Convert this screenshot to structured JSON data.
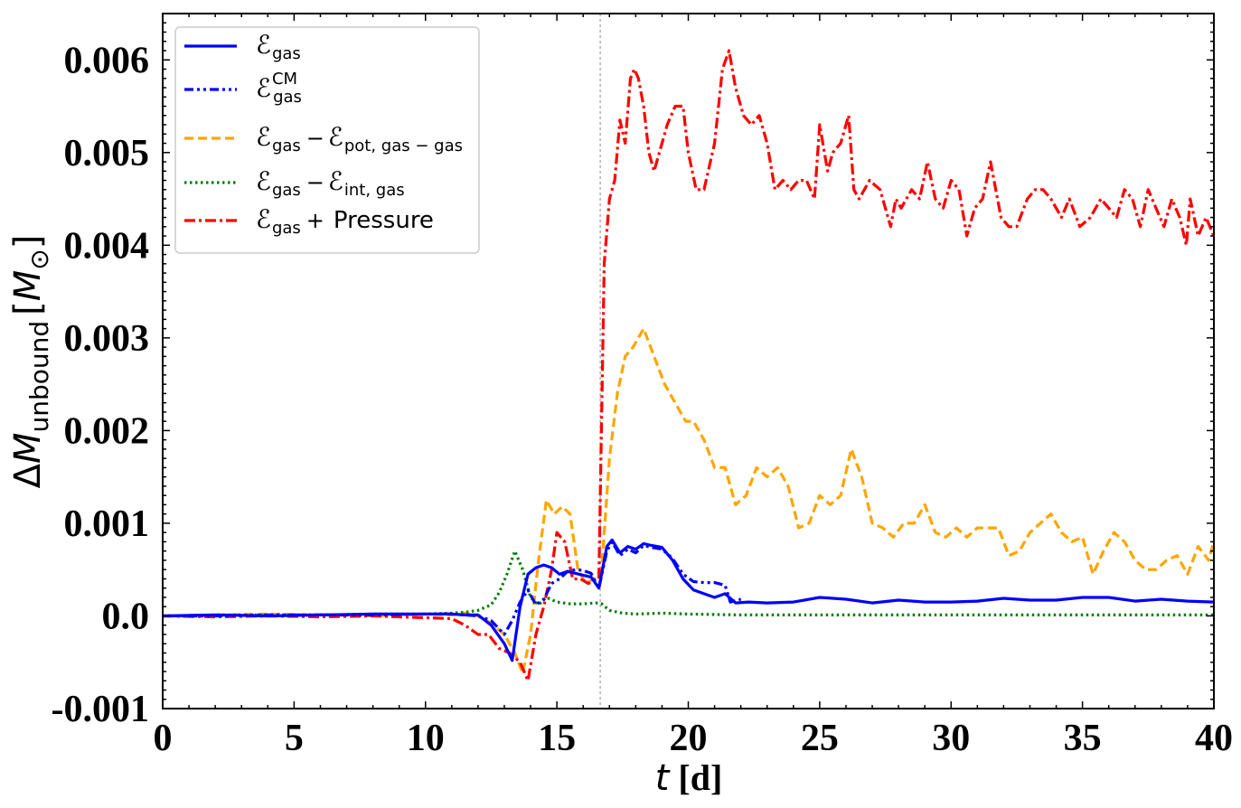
{
  "chart_data": {
    "type": "line",
    "xlabel": "t [d]",
    "ylabel": "ΔM_unbound [M⊙]",
    "xlim": [
      0,
      40
    ],
    "ylim": [
      -0.001,
      0.0065
    ],
    "xticks": [
      0,
      5,
      10,
      15,
      20,
      25,
      30,
      35,
      40
    ],
    "xtick_labels": [
      "0",
      "5",
      "10",
      "15",
      "20",
      "25",
      "30",
      "35",
      "40"
    ],
    "yticks": [
      -0.001,
      0,
      0.001,
      0.002,
      0.003,
      0.004,
      0.005,
      0.006
    ],
    "ytick_labels": [
      "-0.001",
      "0.0",
      "0.001",
      "0.002",
      "0.003",
      "0.004",
      "0.005",
      "0.006"
    ],
    "vline_x": 16.65,
    "legend_position": "top-left",
    "grid": false,
    "series": [
      {
        "name": "E_gas",
        "legend": {
          "base": "ℰ",
          "sub": "gas",
          "sup": "",
          "rest": []
        },
        "color": "#0000ff",
        "dash": "solid",
        "x": [
          0,
          2,
          4,
          6,
          8,
          10,
          11,
          11.5,
          12,
          12.5,
          13,
          13.3,
          13.6,
          13.9,
          14.2,
          14.5,
          14.8,
          15.1,
          15.4,
          15.7,
          16.0,
          16.3,
          16.6,
          16.9,
          17.1,
          17.4,
          17.7,
          18.0,
          18.3,
          18.6,
          19.0,
          19.4,
          19.8,
          20.2,
          20.6,
          21.0,
          21.4,
          21.8,
          22.3,
          23,
          24,
          25,
          26,
          27,
          28,
          29,
          30,
          31,
          32,
          33,
          34,
          35,
          36,
          37,
          38,
          39,
          40
        ],
        "y": [
          0,
          1e-05,
          0,
          1e-05,
          2e-05,
          2e-05,
          2e-05,
          1e-05,
          1e-05,
          -0.0001,
          -0.0003,
          -0.00048,
          0.0001,
          0.00045,
          0.00052,
          0.00055,
          0.00052,
          0.00045,
          0.00048,
          0.00046,
          0.00044,
          0.00042,
          0.0003,
          0.00075,
          0.00082,
          0.00068,
          0.00075,
          0.00072,
          0.00078,
          0.00076,
          0.00074,
          0.0006,
          0.0004,
          0.00028,
          0.00024,
          0.0002,
          0.00024,
          0.00014,
          0.00015,
          0.00014,
          0.00015,
          0.0002,
          0.00018,
          0.00014,
          0.00017,
          0.00015,
          0.00015,
          0.00016,
          0.00019,
          0.00017,
          0.00017,
          0.0002,
          0.0002,
          0.00016,
          0.00018,
          0.00016,
          0.00015
        ]
      },
      {
        "name": "E_gas^CM",
        "legend": {
          "base": "ℰ",
          "sub": "gas",
          "sup": "CM",
          "rest": []
        },
        "color": "#0000ff",
        "dash": "dashdotdot",
        "x": [
          0,
          2,
          4,
          6,
          8,
          10,
          11,
          12,
          12.5,
          13,
          13.3,
          13.6,
          13.9,
          14.2,
          14.5,
          14.8,
          15.1,
          15.4,
          15.7,
          16.0,
          16.3,
          16.6,
          16.9,
          17.1,
          17.4,
          17.7,
          18.0,
          18.3,
          18.6,
          19.0,
          19.4,
          19.8,
          20.2,
          20.6,
          21.0,
          21.4,
          21.6,
          22.0
        ],
        "y": [
          0,
          0,
          1e-05,
          1e-05,
          1e-05,
          2e-05,
          2e-05,
          0,
          -5e-05,
          -0.0002,
          -5e-05,
          0.00015,
          0.00028,
          0.00012,
          0.00018,
          0.00035,
          0.0004,
          0.00048,
          0.0005,
          0.00049,
          0.00046,
          0.0003,
          0.0007,
          0.0008,
          0.00065,
          0.00072,
          0.00068,
          0.00076,
          0.00074,
          0.00072,
          0.00062,
          0.00045,
          0.00037,
          0.00036,
          0.00036,
          0.00033,
          0.00015,
          0.00018
        ]
      },
      {
        "name": "E_gas − E_pot,gas−gas",
        "legend": {
          "base": "ℰ",
          "sub": "gas",
          "sup": "",
          "rest": [
            {
              "op": "−",
              "base": "ℰ",
              "sub": "pot, gas − gas"
            }
          ]
        },
        "color": "#ffa500",
        "dash": "dashed",
        "x": [
          0,
          2,
          4,
          6,
          8,
          10,
          11,
          11.5,
          12,
          12.5,
          13,
          13.4,
          13.7,
          14.0,
          14.3,
          14.6,
          14.9,
          15.2,
          15.5,
          15.8,
          16.1,
          16.4,
          16.7,
          17.0,
          17.3,
          17.6,
          17.9,
          18.3,
          18.7,
          19.1,
          19.5,
          19.9,
          20.2,
          20.6,
          21.0,
          21.4,
          21.8,
          22.2,
          22.6,
          23.0,
          23.4,
          23.8,
          24.2,
          24.6,
          25.0,
          25.4,
          25.8,
          26.2,
          26.6,
          27.0,
          27.4,
          27.8,
          28.2,
          28.6,
          29.0,
          29.4,
          29.8,
          30.2,
          30.6,
          31.0,
          31.4,
          31.8,
          32.2,
          32.6,
          33.0,
          33.4,
          33.8,
          34.2,
          34.6,
          35.0,
          35.4,
          35.8,
          36.2,
          36.6,
          37.0,
          37.4,
          37.8,
          38.2,
          38.6,
          39.0,
          39.4,
          39.8,
          40.0
        ],
        "y": [
          0,
          1e-05,
          2e-05,
          1e-05,
          0,
          2e-05,
          1e-05,
          3e-05,
          0,
          -8e-05,
          -0.0002,
          -0.0004,
          -0.00062,
          -0.0002,
          0.0006,
          0.00125,
          0.0011,
          0.00118,
          0.0011,
          0.0005,
          0.00035,
          0.0004,
          0.0005,
          0.0017,
          0.0024,
          0.0028,
          0.0029,
          0.0031,
          0.0028,
          0.0025,
          0.0023,
          0.0021,
          0.0021,
          0.0019,
          0.0016,
          0.0016,
          0.0012,
          0.0013,
          0.0016,
          0.0015,
          0.0016,
          0.0014,
          0.00095,
          0.001,
          0.0013,
          0.0012,
          0.0013,
          0.0018,
          0.0015,
          0.001,
          0.00095,
          0.00085,
          0.001,
          0.001,
          0.0012,
          0.0009,
          0.00085,
          0.00095,
          0.00085,
          0.00095,
          0.00095,
          0.00095,
          0.00065,
          0.0007,
          0.0009,
          0.001,
          0.0011,
          0.0009,
          0.0008,
          0.00085,
          0.00045,
          0.0007,
          0.0009,
          0.0008,
          0.0006,
          0.0005,
          0.0005,
          0.0006,
          0.00065,
          0.00045,
          0.00075,
          0.0006,
          0.0008
        ]
      },
      {
        "name": "E_gas − E_int,gas",
        "legend": {
          "base": "ℰ",
          "sub": "gas",
          "sup": "",
          "rest": [
            {
              "op": "−",
              "base": "ℰ",
              "sub": "int, gas"
            }
          ]
        },
        "color": "#008000",
        "dash": "dotted",
        "x": [
          0,
          2,
          4,
          6,
          8,
          10,
          11,
          11.5,
          12,
          12.5,
          12.8,
          13.1,
          13.4,
          13.7,
          14.0,
          14.3,
          14.6,
          15.0,
          15.5,
          16.0,
          16.5,
          16.7,
          17.0,
          17.5,
          18,
          19,
          20,
          22,
          24,
          26,
          28,
          30,
          32,
          34,
          36,
          38,
          40
        ],
        "y": [
          0,
          1e-05,
          1e-05,
          1e-05,
          2e-05,
          2e-05,
          3e-05,
          4e-05,
          6e-05,
          0.00012,
          0.00025,
          0.00045,
          0.0007,
          0.0005,
          0.0002,
          0.00012,
          0.0002,
          0.00015,
          0.00013,
          0.00013,
          0.00014,
          0.00013,
          6e-05,
          3e-05,
          2e-05,
          3e-05,
          2e-05,
          1e-05,
          1e-05,
          1e-05,
          1e-05,
          1e-05,
          1e-05,
          1e-05,
          1e-05,
          1e-05,
          1e-05
        ]
      },
      {
        "name": "E_gas + Pressure",
        "legend": {
          "base": "ℰ",
          "sub": "gas",
          "sup": "",
          "rest": [
            {
              "op": "+",
              "text": "Pressure"
            }
          ]
        },
        "color": "#ff0000",
        "dash": "dashdot",
        "x": [
          0,
          2,
          4,
          6,
          8,
          10,
          11,
          11.5,
          12,
          12.4,
          12.8,
          13.2,
          13.6,
          13.9,
          14.2,
          14.5,
          14.8,
          15.0,
          15.3,
          15.6,
          15.9,
          16.2,
          16.5,
          16.6,
          16.8,
          17.0,
          17.2,
          17.4,
          17.6,
          17.8,
          17.95,
          18.1,
          18.3,
          18.5,
          18.7,
          18.9,
          19.2,
          19.5,
          19.8,
          20.0,
          20.3,
          20.6,
          21.0,
          21.3,
          21.55,
          21.8,
          22.1,
          22.4,
          22.7,
          23.0,
          23.3,
          23.6,
          23.9,
          24.2,
          24.5,
          24.8,
          25.0,
          25.3,
          25.5,
          25.8,
          26.1,
          26.3,
          26.5,
          26.9,
          27.3,
          27.7,
          27.9,
          28.1,
          28.5,
          28.8,
          29.1,
          29.4,
          29.7,
          30.0,
          30.3,
          30.6,
          30.9,
          31.2,
          31.5,
          31.9,
          32.2,
          32.5,
          32.9,
          33.2,
          33.5,
          33.8,
          34.2,
          34.5,
          34.9,
          35.3,
          35.7,
          36.0,
          36.3,
          36.6,
          36.9,
          37.2,
          37.5,
          37.8,
          38.1,
          38.4,
          38.7,
          38.95,
          39.1,
          39.4,
          39.7,
          40.0
        ],
        "y": [
          0,
          -1e-05,
          0,
          -1e-05,
          0,
          -2e-05,
          -3e-05,
          -0.0001,
          -0.0002,
          -0.0002,
          -0.00035,
          -0.0004,
          -0.0005,
          -0.0007,
          -0.0002,
          0.0001,
          0.0005,
          0.0009,
          0.0008,
          0.0004,
          0.0004,
          0.00035,
          0.0004,
          0.0004,
          0.0038,
          0.0045,
          0.0047,
          0.00535,
          0.0051,
          0.0058,
          0.0059,
          0.0058,
          0.0055,
          0.005,
          0.0048,
          0.005,
          0.0053,
          0.0055,
          0.0055,
          0.005,
          0.0046,
          0.0046,
          0.0051,
          0.0059,
          0.0061,
          0.0057,
          0.0054,
          0.0053,
          0.0054,
          0.0051,
          0.0046,
          0.0047,
          0.0046,
          0.0047,
          0.0047,
          0.0045,
          0.0053,
          0.0048,
          0.005,
          0.0051,
          0.0054,
          0.0046,
          0.0045,
          0.0047,
          0.0046,
          0.0042,
          0.0045,
          0.0044,
          0.0046,
          0.0045,
          0.0049,
          0.0045,
          0.0044,
          0.0047,
          0.0046,
          0.0041,
          0.0044,
          0.0045,
          0.0049,
          0.0043,
          0.0042,
          0.0042,
          0.0045,
          0.0046,
          0.0046,
          0.0045,
          0.0043,
          0.0045,
          0.0042,
          0.0043,
          0.0045,
          0.0044,
          0.0043,
          0.0046,
          0.0045,
          0.0042,
          0.0046,
          0.0044,
          0.0042,
          0.0045,
          0.0043,
          0.004,
          0.0045,
          0.0041,
          0.0043,
          0.0041
        ]
      }
    ]
  }
}
